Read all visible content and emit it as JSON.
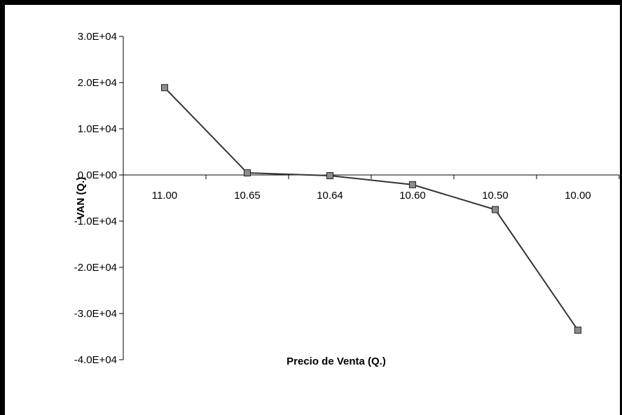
{
  "chart_data": {
    "type": "line",
    "title": "",
    "xlabel": "Precio de Venta (Q.)",
    "ylabel": "VAN (Q.)",
    "categories": [
      "11.00",
      "10.65",
      "10.64",
      "10.60",
      "10.50",
      "10.00"
    ],
    "series": [
      {
        "values": [
          18900,
          450,
          -150,
          -2100,
          -7500,
          -33600
        ],
        "color": "#333333",
        "marker_color": "#8c8c8c"
      }
    ],
    "ylim": [
      -40000,
      30000
    ],
    "yticks": [
      30000,
      20000,
      10000,
      0,
      -10000,
      -20000,
      -30000,
      -40000
    ],
    "ytick_labels": [
      "3.0E+04",
      "2.0E+04",
      "1.0E+04",
      "0.0E+00",
      "-1.0E+04",
      "-2.0E+04",
      "-3.0E+04",
      "-4.0E+04"
    ],
    "grid": false,
    "legend": "none"
  }
}
